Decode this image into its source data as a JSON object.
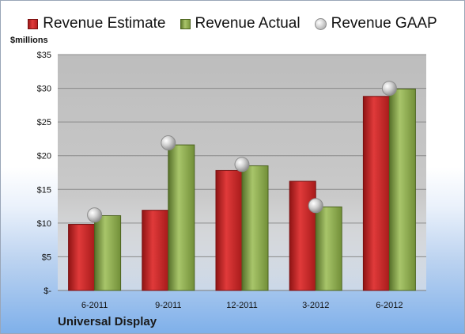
{
  "chart_data": {
    "type": "bar",
    "categories": [
      "6-2011",
      "9-2011",
      "12-2011",
      "3-2012",
      "6-2012"
    ],
    "series": [
      {
        "name": "Revenue Estimate",
        "kind": "bar",
        "color": "#c9252b",
        "values": [
          9.8,
          11.9,
          17.8,
          16.2,
          28.8
        ]
      },
      {
        "name": "Revenue Actual",
        "kind": "bar",
        "color": "#8daa4e",
        "values": [
          11.1,
          21.6,
          18.5,
          12.4,
          29.9
        ]
      },
      {
        "name": "Revenue GAAP",
        "kind": "scatter",
        "color": "#b8b8b8",
        "values": [
          11.2,
          21.9,
          18.7,
          12.6,
          30.0
        ]
      }
    ],
    "ylabel": "$millions",
    "ylim": [
      0,
      35
    ],
    "yticks": [
      0,
      5,
      10,
      15,
      20,
      25,
      30,
      35
    ],
    "ytick_labels": [
      "$-",
      "$5",
      "$10",
      "$15",
      "$20",
      "$25",
      "$30",
      "$35"
    ],
    "grid": true,
    "legend_position": "top",
    "plot_background": "#c8c8c8"
  },
  "legend": {
    "estimate": "Revenue Estimate",
    "actual": "Revenue Actual",
    "gaap": "Revenue GAAP"
  },
  "units_label": "$millions",
  "company": "Universal Display"
}
